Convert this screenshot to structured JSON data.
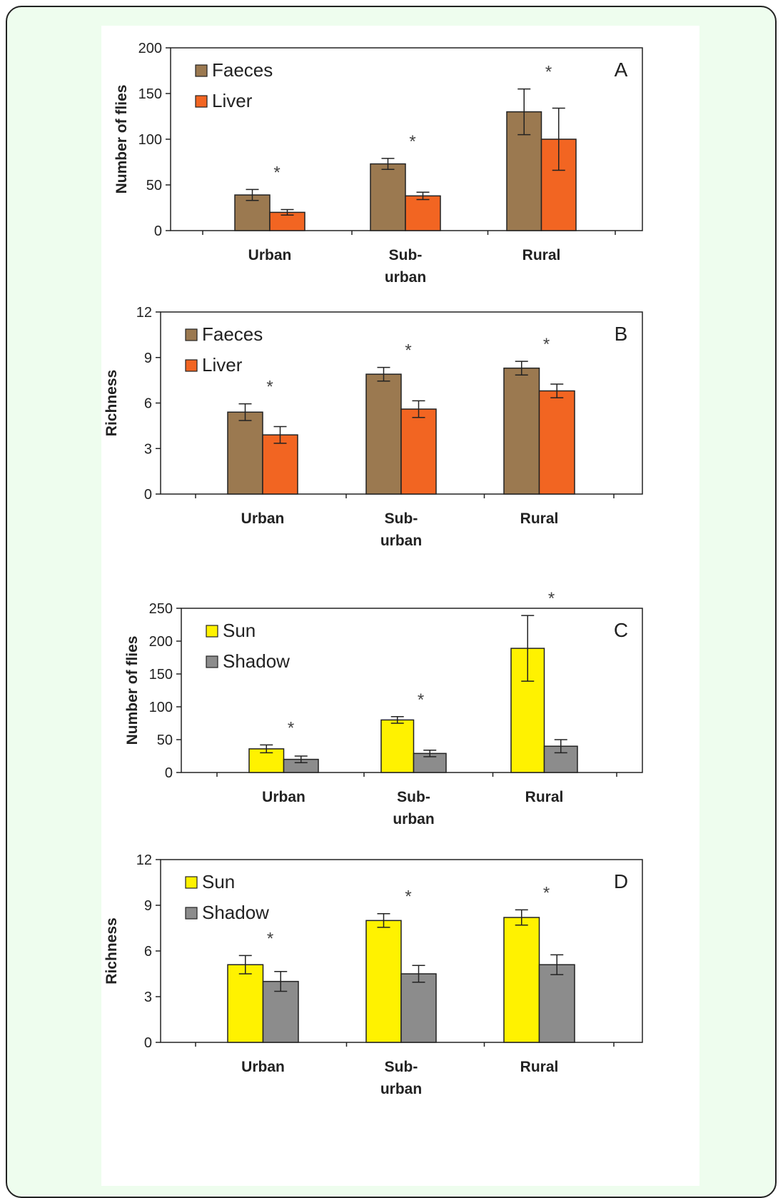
{
  "chart_data": [
    {
      "type": "bar",
      "panel_letter": "A",
      "title": "",
      "ylabel": "Number of flies",
      "xlabel": "",
      "ylim": [
        0,
        200
      ],
      "yticks": [
        0,
        50,
        100,
        150,
        200
      ],
      "grid": false,
      "legend_position": "top-left",
      "categories": [
        [
          "Urban"
        ],
        [
          "Sub-",
          "urban"
        ],
        [
          "Rural"
        ]
      ],
      "series": [
        {
          "name": "Faeces",
          "color": "#9b7950",
          "values": [
            39,
            73,
            130
          ],
          "errors": [
            6,
            6,
            25
          ]
        },
        {
          "name": "Liver",
          "color": "#f26522",
          "values": [
            20,
            38,
            100
          ],
          "errors": [
            3,
            4,
            34
          ]
        }
      ],
      "significance": [
        "*",
        "*",
        "*"
      ]
    },
    {
      "type": "bar",
      "panel_letter": "B",
      "title": "",
      "ylabel": "Richness",
      "xlabel": "",
      "ylim": [
        0,
        12
      ],
      "yticks": [
        0,
        3,
        6,
        9,
        12
      ],
      "grid": false,
      "legend_position": "top-left",
      "categories": [
        [
          "Urban"
        ],
        [
          "Sub-",
          "urban"
        ],
        [
          "Rural"
        ]
      ],
      "series": [
        {
          "name": "Faeces",
          "color": "#9b7950",
          "values": [
            5.4,
            7.9,
            8.3
          ],
          "errors": [
            0.55,
            0.45,
            0.45
          ]
        },
        {
          "name": "Liver",
          "color": "#f26522",
          "values": [
            3.9,
            5.6,
            6.8
          ],
          "errors": [
            0.55,
            0.55,
            0.45
          ]
        }
      ],
      "significance": [
        "*",
        "*",
        "*"
      ]
    },
    {
      "type": "bar",
      "panel_letter": "C",
      "title": "",
      "ylabel": "Number of flies",
      "xlabel": "",
      "ylim": [
        0,
        250
      ],
      "yticks": [
        0,
        50,
        100,
        150,
        200,
        250
      ],
      "grid": false,
      "legend_position": "top-left",
      "categories": [
        [
          "Urban"
        ],
        [
          "Sub-",
          "urban"
        ],
        [
          "Rural"
        ]
      ],
      "series": [
        {
          "name": "Sun",
          "color": "#fff200",
          "values": [
            36,
            80,
            189
          ],
          "errors": [
            6,
            5,
            50
          ]
        },
        {
          "name": "Shadow",
          "color": "#8c8c8c",
          "values": [
            20,
            29,
            40
          ],
          "errors": [
            5,
            5,
            10
          ]
        }
      ],
      "significance": [
        "*",
        "*",
        "*"
      ]
    },
    {
      "type": "bar",
      "panel_letter": "D",
      "title": "",
      "ylabel": "Richness",
      "xlabel": "",
      "ylim": [
        0,
        12
      ],
      "yticks": [
        0,
        3,
        6,
        9,
        12
      ],
      "grid": false,
      "legend_position": "top-left",
      "categories": [
        [
          "Urban"
        ],
        [
          "Sub-",
          "urban"
        ],
        [
          "Rural"
        ]
      ],
      "series": [
        {
          "name": "Sun",
          "color": "#fff200",
          "values": [
            5.1,
            8.0,
            8.2
          ],
          "errors": [
            0.6,
            0.45,
            0.5
          ]
        },
        {
          "name": "Shadow",
          "color": "#8c8c8c",
          "values": [
            4.0,
            4.5,
            5.1
          ],
          "errors": [
            0.65,
            0.55,
            0.65
          ]
        }
      ],
      "significance": [
        "*",
        "*",
        "*"
      ]
    }
  ]
}
